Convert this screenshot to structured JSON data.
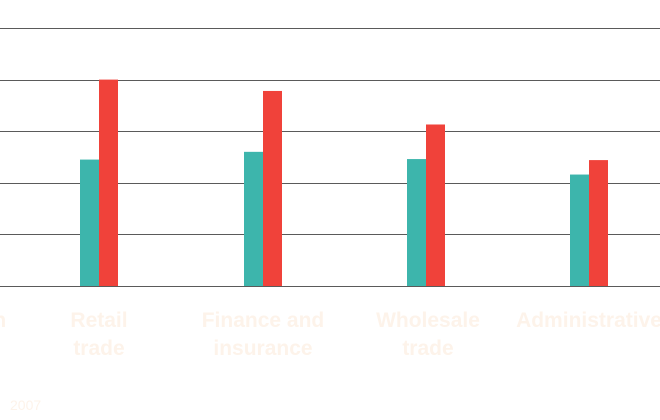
{
  "chart_data": {
    "type": "bar",
    "categories": [
      [
        "..n"
      ],
      [
        "Retail",
        "trade"
      ],
      [
        "Finance and",
        "insurance"
      ],
      [
        "Wholesale",
        "trade"
      ],
      [
        "Administrative"
      ]
    ],
    "series": [
      {
        "values": [
          null,
          2.45,
          2.6,
          2.46,
          2.16
        ],
        "color": "#3db5ac"
      },
      {
        "values": [
          null,
          4.0,
          3.78,
          3.13,
          2.44
        ],
        "color": "#f0423a"
      }
    ],
    "ylim": [
      0,
      5
    ],
    "gridlines": [
      0,
      1,
      2,
      3,
      4,
      5
    ],
    "grid": true,
    "year_label": "2007",
    "label_color": "#fdf3ea"
  }
}
